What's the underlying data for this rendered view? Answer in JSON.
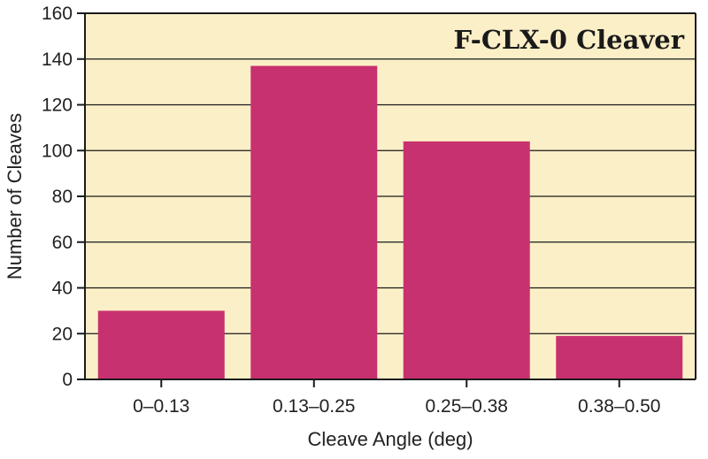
{
  "chart_data": {
    "type": "bar",
    "title": "F-CLX-0 Cleaver",
    "xlabel": "Cleave Angle (deg)",
    "ylabel": "Number of Cleaves",
    "categories": [
      "0–0.13",
      "0.13–0.25",
      "0.25–0.38",
      "0.38–0.50"
    ],
    "values": [
      30,
      137,
      104,
      19
    ],
    "ylim": [
      0,
      160
    ],
    "yticks": [
      0,
      20,
      40,
      60,
      80,
      100,
      120,
      140,
      160
    ],
    "grid": true,
    "colors": {
      "bar": "#C8316F",
      "plot_background": "#FBEFC7",
      "gridline": "#1a1a1a",
      "axis": "#1a1a1a"
    }
  }
}
